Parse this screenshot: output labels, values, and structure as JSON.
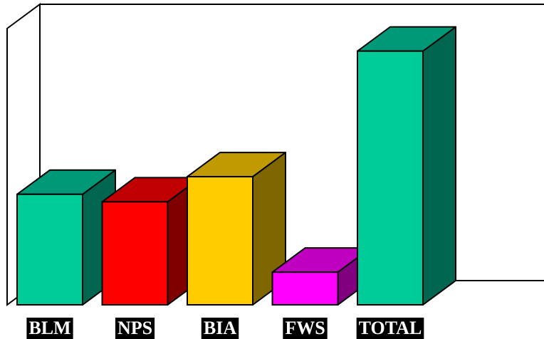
{
  "chart_data": {
    "type": "bar",
    "style": "3d",
    "title": "",
    "xlabel": "",
    "ylabel": "",
    "categories": [
      "BLM",
      "NPS",
      "BIA",
      "FWS",
      "TOTAL"
    ],
    "values": [
      22,
      20.5,
      25.5,
      6.5,
      50.5
    ],
    "ylim": [
      0,
      55
    ],
    "grid": false,
    "legend": "none",
    "colors": [
      {
        "front": "#00CC99",
        "top": "#009977",
        "side": "#006650"
      },
      {
        "front": "#FF0000",
        "top": "#C00000",
        "side": "#800000"
      },
      {
        "front": "#FFCC00",
        "top": "#C09A00",
        "side": "#806600"
      },
      {
        "front": "#FF00FF",
        "top": "#C000C0",
        "side": "#800080"
      },
      {
        "front": "#00CC99",
        "top": "#009977",
        "side": "#006650"
      }
    ],
    "label_background": "#000000",
    "label_color": "#FFFFFF"
  }
}
